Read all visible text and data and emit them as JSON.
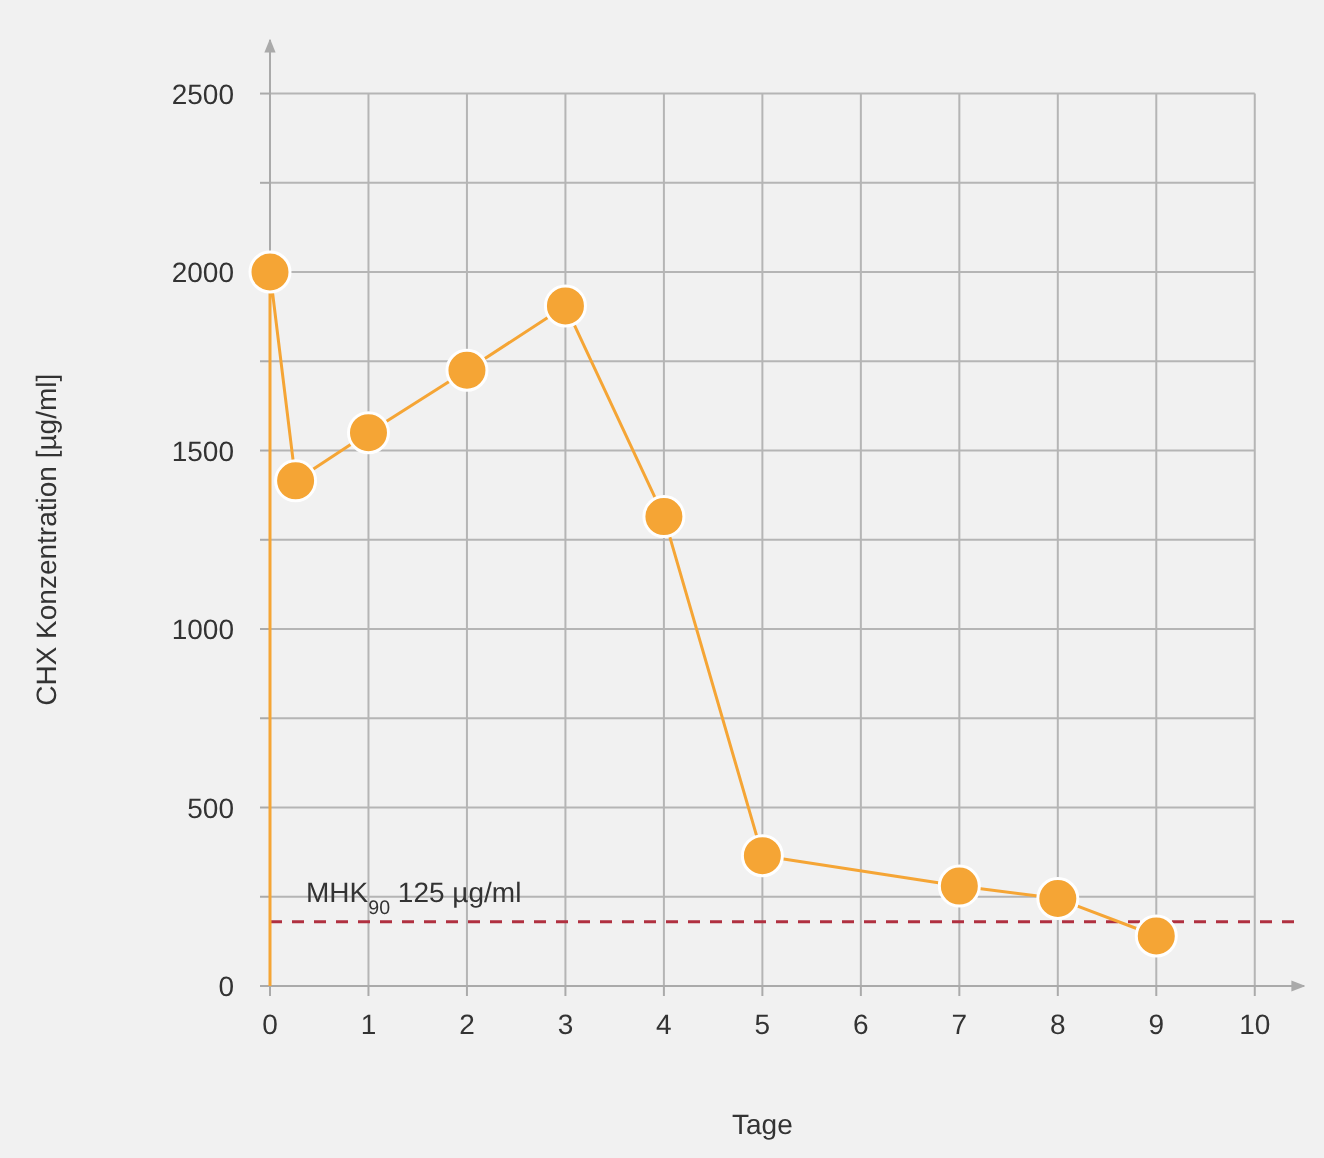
{
  "chart_data": {
    "type": "line",
    "xlabel": "Tage",
    "ylabel": "CHX Konzentration [µg/ml]",
    "xlim": [
      0,
      10.5
    ],
    "ylim": [
      0,
      2650
    ],
    "xticks": [
      0,
      1,
      2,
      3,
      4,
      5,
      6,
      7,
      8,
      9,
      10
    ],
    "yticks": [
      0,
      {
        "value": 250,
        "label": null
      },
      500,
      {
        "value": 750,
        "label": null
      },
      1000,
      {
        "value": 1250,
        "label": null
      },
      1500,
      {
        "value": 1750,
        "label": null
      },
      2000,
      {
        "value": 2250,
        "label": null
      },
      2500
    ],
    "grid": true,
    "series": [
      {
        "type": "line",
        "color": "#f5a535",
        "marker": "none",
        "line_style": "solid",
        "x": [
          0,
          0,
          0.26,
          1,
          2,
          3,
          4,
          5,
          7,
          8,
          9
        ],
        "values": [
          0,
          2000,
          1415,
          1550,
          1725,
          1905,
          1315,
          365,
          280,
          245,
          140
        ]
      },
      {
        "type": "scatter",
        "color": "#f5a535",
        "marker": "circle",
        "x": [
          0,
          0.26,
          1,
          2,
          3,
          4,
          5,
          7,
          8,
          9
        ],
        "values": [
          2000,
          1415,
          1550,
          1725,
          1905,
          1315,
          365,
          280,
          245,
          140
        ]
      }
    ],
    "ref_lines": [
      {
        "axis": "y",
        "value": 180,
        "label": "MHK$_{90}$ 125 µg/ml",
        "color": "#b03040",
        "line_style": "dashed"
      }
    ]
  }
}
